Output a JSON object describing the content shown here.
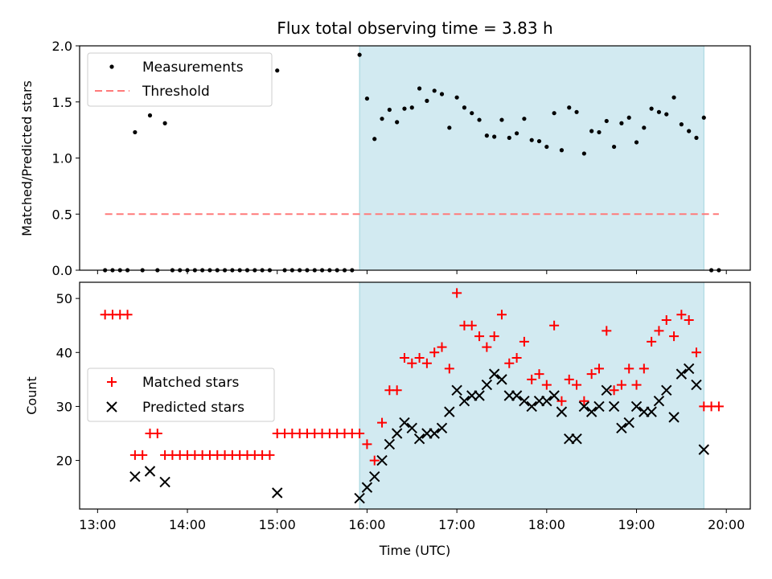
{
  "title": "Flux total observing time = 3.83 h",
  "colors": {
    "measurement": "#000000",
    "threshold": "#ff7a7a",
    "matched": "#ff0000",
    "predicted": "#000000",
    "shade": "#add8e6"
  },
  "chart_data": [
    {
      "type": "scatter",
      "ylabel": "Matched/Predicted stars",
      "ylim": [
        0,
        2.0
      ],
      "yticks": [
        "0.0",
        "0.5",
        "1.0",
        "1.5",
        "2.0"
      ],
      "xlim": [
        "12:48",
        "20:16"
      ],
      "legend": {
        "placement": "top-left",
        "entries": [
          "Measurements",
          "Threshold"
        ]
      },
      "shaded_interval": [
        "15:55",
        "19:45"
      ],
      "threshold": {
        "value": 0.5,
        "x_range": [
          "13:05",
          "19:55"
        ]
      },
      "series": [
        {
          "name": "Measurements",
          "points": [
            [
              "13:05",
              0
            ],
            [
              "13:10",
              0
            ],
            [
              "13:15",
              0
            ],
            [
              "13:20",
              0
            ],
            [
              "13:25",
              1.23
            ],
            [
              "13:30",
              0
            ],
            [
              "13:35",
              1.38
            ],
            [
              "13:40",
              0
            ],
            [
              "13:45",
              1.31
            ],
            [
              "13:50",
              0
            ],
            [
              "13:55",
              0
            ],
            [
              "14:00",
              0
            ],
            [
              "14:05",
              0
            ],
            [
              "14:10",
              0
            ],
            [
              "14:15",
              0
            ],
            [
              "14:20",
              0
            ],
            [
              "14:25",
              0
            ],
            [
              "14:30",
              0
            ],
            [
              "14:35",
              0
            ],
            [
              "14:40",
              0
            ],
            [
              "14:45",
              0
            ],
            [
              "14:50",
              0
            ],
            [
              "14:55",
              0
            ],
            [
              "15:00",
              1.78
            ],
            [
              "15:05",
              0
            ],
            [
              "15:10",
              0
            ],
            [
              "15:15",
              0
            ],
            [
              "15:20",
              0
            ],
            [
              "15:25",
              0
            ],
            [
              "15:30",
              0
            ],
            [
              "15:35",
              0
            ],
            [
              "15:40",
              0
            ],
            [
              "15:45",
              0
            ],
            [
              "15:50",
              0
            ],
            [
              "15:55",
              1.92
            ],
            [
              "16:00",
              1.53
            ],
            [
              "16:05",
              1.17
            ],
            [
              "16:10",
              1.35
            ],
            [
              "16:15",
              1.43
            ],
            [
              "16:20",
              1.32
            ],
            [
              "16:25",
              1.44
            ],
            [
              "16:30",
              1.45
            ],
            [
              "16:35",
              1.62
            ],
            [
              "16:40",
              1.51
            ],
            [
              "16:45",
              1.6
            ],
            [
              "16:50",
              1.57
            ],
            [
              "16:55",
              1.27
            ],
            [
              "17:00",
              1.54
            ],
            [
              "17:05",
              1.45
            ],
            [
              "17:10",
              1.4
            ],
            [
              "17:15",
              1.34
            ],
            [
              "17:20",
              1.2
            ],
            [
              "17:25",
              1.19
            ],
            [
              "17:30",
              1.34
            ],
            [
              "17:35",
              1.18
            ],
            [
              "17:40",
              1.22
            ],
            [
              "17:45",
              1.35
            ],
            [
              "17:50",
              1.16
            ],
            [
              "17:55",
              1.15
            ],
            [
              "18:00",
              1.1
            ],
            [
              "18:05",
              1.4
            ],
            [
              "18:10",
              1.07
            ],
            [
              "18:15",
              1.45
            ],
            [
              "18:20",
              1.41
            ],
            [
              "18:25",
              1.04
            ],
            [
              "18:30",
              1.24
            ],
            [
              "18:35",
              1.23
            ],
            [
              "18:40",
              1.33
            ],
            [
              "18:45",
              1.1
            ],
            [
              "18:50",
              1.31
            ],
            [
              "18:55",
              1.36
            ],
            [
              "19:00",
              1.14
            ],
            [
              "19:05",
              1.27
            ],
            [
              "19:10",
              1.44
            ],
            [
              "19:15",
              1.41
            ],
            [
              "19:20",
              1.39
            ],
            [
              "19:25",
              1.54
            ],
            [
              "19:30",
              1.3
            ],
            [
              "19:35",
              1.24
            ],
            [
              "19:40",
              1.18
            ],
            [
              "19:45",
              1.36
            ],
            [
              "19:50",
              0
            ],
            [
              "19:55",
              0
            ]
          ]
        }
      ]
    },
    {
      "type": "scatter",
      "xlabel": "Time (UTC)",
      "ylabel": "Count",
      "ylim": [
        11,
        53
      ],
      "yticks": [
        "20",
        "30",
        "40",
        "50"
      ],
      "xlim": [
        "12:48",
        "20:16"
      ],
      "xticks": [
        "13:00",
        "14:00",
        "15:00",
        "16:00",
        "17:00",
        "18:00",
        "19:00",
        "20:00"
      ],
      "legend": {
        "placement": "center-left",
        "entries": [
          "Matched stars",
          "Predicted stars"
        ]
      },
      "shaded_interval": [
        "15:55",
        "19:45"
      ],
      "series": [
        {
          "name": "Matched stars",
          "points": [
            [
              "13:05",
              47
            ],
            [
              "13:10",
              47
            ],
            [
              "13:15",
              47
            ],
            [
              "13:20",
              47
            ],
            [
              "13:25",
              21
            ],
            [
              "13:30",
              21
            ],
            [
              "13:35",
              25
            ],
            [
              "13:40",
              25
            ],
            [
              "13:45",
              21
            ],
            [
              "13:50",
              21
            ],
            [
              "13:55",
              21
            ],
            [
              "14:00",
              21
            ],
            [
              "14:05",
              21
            ],
            [
              "14:10",
              21
            ],
            [
              "14:15",
              21
            ],
            [
              "14:20",
              21
            ],
            [
              "14:25",
              21
            ],
            [
              "14:30",
              21
            ],
            [
              "14:35",
              21
            ],
            [
              "14:40",
              21
            ],
            [
              "14:45",
              21
            ],
            [
              "14:50",
              21
            ],
            [
              "14:55",
              21
            ],
            [
              "15:00",
              25
            ],
            [
              "15:05",
              25
            ],
            [
              "15:10",
              25
            ],
            [
              "15:15",
              25
            ],
            [
              "15:20",
              25
            ],
            [
              "15:25",
              25
            ],
            [
              "15:30",
              25
            ],
            [
              "15:35",
              25
            ],
            [
              "15:40",
              25
            ],
            [
              "15:45",
              25
            ],
            [
              "15:50",
              25
            ],
            [
              "15:55",
              25
            ],
            [
              "16:00",
              23
            ],
            [
              "16:05",
              20
            ],
            [
              "16:10",
              27
            ],
            [
              "16:15",
              33
            ],
            [
              "16:20",
              33
            ],
            [
              "16:25",
              39
            ],
            [
              "16:30",
              38
            ],
            [
              "16:35",
              39
            ],
            [
              "16:40",
              38
            ],
            [
              "16:45",
              40
            ],
            [
              "16:50",
              41
            ],
            [
              "16:55",
              37
            ],
            [
              "17:00",
              51
            ],
            [
              "17:05",
              45
            ],
            [
              "17:10",
              45
            ],
            [
              "17:15",
              43
            ],
            [
              "17:20",
              41
            ],
            [
              "17:25",
              43
            ],
            [
              "17:30",
              47
            ],
            [
              "17:35",
              38
            ],
            [
              "17:40",
              39
            ],
            [
              "17:45",
              42
            ],
            [
              "17:50",
              35
            ],
            [
              "17:55",
              36
            ],
            [
              "18:00",
              34
            ],
            [
              "18:05",
              45
            ],
            [
              "18:10",
              31
            ],
            [
              "18:15",
              35
            ],
            [
              "18:20",
              34
            ],
            [
              "18:25",
              31
            ],
            [
              "18:30",
              36
            ],
            [
              "18:35",
              37
            ],
            [
              "18:40",
              44
            ],
            [
              "18:45",
              33
            ],
            [
              "18:50",
              34
            ],
            [
              "18:55",
              37
            ],
            [
              "19:00",
              34
            ],
            [
              "19:05",
              37
            ],
            [
              "19:10",
              42
            ],
            [
              "19:15",
              44
            ],
            [
              "19:20",
              46
            ],
            [
              "19:25",
              43
            ],
            [
              "19:30",
              47
            ],
            [
              "19:35",
              46
            ],
            [
              "19:40",
              40
            ],
            [
              "19:45",
              30
            ],
            [
              "19:50",
              30
            ],
            [
              "19:55",
              30
            ]
          ]
        },
        {
          "name": "Predicted stars",
          "points": [
            [
              "13:25",
              17
            ],
            [
              "13:35",
              18
            ],
            [
              "13:45",
              16
            ],
            [
              "15:00",
              14
            ],
            [
              "15:55",
              13
            ],
            [
              "16:00",
              15
            ],
            [
              "16:05",
              17
            ],
            [
              "16:10",
              20
            ],
            [
              "16:15",
              23
            ],
            [
              "16:20",
              25
            ],
            [
              "16:25",
              27
            ],
            [
              "16:30",
              26
            ],
            [
              "16:35",
              24
            ],
            [
              "16:40",
              25
            ],
            [
              "16:45",
              25
            ],
            [
              "16:50",
              26
            ],
            [
              "16:55",
              29
            ],
            [
              "17:00",
              33
            ],
            [
              "17:05",
              31
            ],
            [
              "17:10",
              32
            ],
            [
              "17:15",
              32
            ],
            [
              "17:20",
              34
            ],
            [
              "17:25",
              36
            ],
            [
              "17:30",
              35
            ],
            [
              "17:35",
              32
            ],
            [
              "17:40",
              32
            ],
            [
              "17:45",
              31
            ],
            [
              "17:50",
              30
            ],
            [
              "17:55",
              31
            ],
            [
              "18:00",
              31
            ],
            [
              "18:05",
              32
            ],
            [
              "18:10",
              29
            ],
            [
              "18:15",
              24
            ],
            [
              "18:20",
              24
            ],
            [
              "18:25",
              30
            ],
            [
              "18:30",
              29
            ],
            [
              "18:35",
              30
            ],
            [
              "18:40",
              33
            ],
            [
              "18:45",
              30
            ],
            [
              "18:50",
              26
            ],
            [
              "18:55",
              27
            ],
            [
              "19:00",
              30
            ],
            [
              "19:05",
              29
            ],
            [
              "19:10",
              29
            ],
            [
              "19:15",
              31
            ],
            [
              "19:20",
              33
            ],
            [
              "19:25",
              28
            ],
            [
              "19:30",
              36
            ],
            [
              "19:35",
              37
            ],
            [
              "19:40",
              34
            ],
            [
              "19:45",
              22
            ]
          ]
        }
      ]
    }
  ]
}
